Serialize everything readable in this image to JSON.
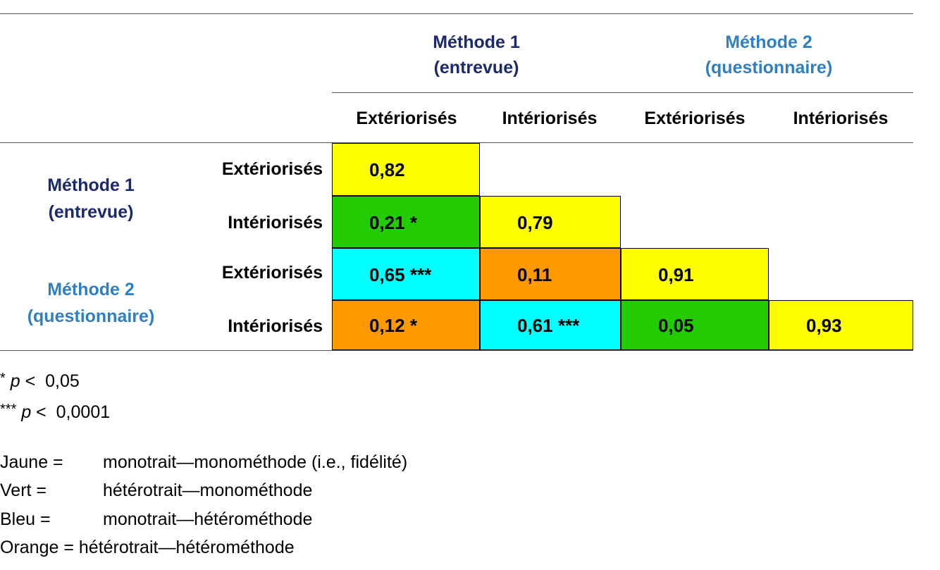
{
  "colors": {
    "header_m1": "#1a2a6c",
    "header_m2": "#2f7fc2",
    "yellow": "#ffff00",
    "green": "#22cc00",
    "cyan": "#00ffff",
    "orange": "#ff9900"
  },
  "header": {
    "method1_line1": "Méthode 1",
    "method1_line2": "(entrevue)",
    "method2_line1": "Méthode 2",
    "method2_line2": "(questionnaire)"
  },
  "columns": [
    "Extériorisés",
    "Intériorisés",
    "Extériorisés",
    "Intériorisés"
  ],
  "row_groups": {
    "method1_line1": "Méthode 1",
    "method1_line2": "(entrevue)",
    "method2_line1": "Méthode 2",
    "method2_line2": "(questionnaire)"
  },
  "rows": [
    "Extériorisés",
    "Intériorisés",
    "Extériorisés",
    "Intériorisés"
  ],
  "chart_data": {
    "type": "table",
    "title": "",
    "row_labels": [
      "Méthode 1 — Extériorisés",
      "Méthode 1 — Intériorisés",
      "Méthode 2 — Extériorisés",
      "Méthode 2 — Intériorisés"
    ],
    "column_labels": [
      "Méthode 1 — Extériorisés",
      "Méthode 1 — Intériorisés",
      "Méthode 2 — Extériorisés",
      "Méthode 2 — Intériorisés"
    ],
    "cells": [
      [
        "0,82",
        "",
        "",
        ""
      ],
      [
        "0,21 *",
        "0,79",
        "",
        ""
      ],
      [
        "0,65 ***",
        "0,11",
        "0,91",
        ""
      ],
      [
        "0,12 *",
        "0,61 ***",
        "0,05",
        "0,93"
      ]
    ],
    "values": [
      [
        0.82,
        null,
        null,
        null
      ],
      [
        0.21,
        0.79,
        null,
        null
      ],
      [
        0.65,
        0.11,
        0.91,
        null
      ],
      [
        0.12,
        0.61,
        0.05,
        0.93
      ]
    ],
    "cell_colors": [
      [
        "yellow",
        null,
        null,
        null
      ],
      [
        "green",
        "yellow",
        null,
        null
      ],
      [
        "cyan",
        "orange",
        "yellow",
        null
      ],
      [
        "orange",
        "cyan",
        "green",
        "yellow"
      ]
    ]
  },
  "footnotes": {
    "sig1_marker": "*",
    "sig1_p": "p",
    "sig1_rest": " <  0,05",
    "sig3_marker": "***",
    "sig3_p": "p",
    "sig3_rest": " <  0,0001"
  },
  "legend": [
    {
      "key": "Jaune =",
      "text": "monotrait—monométhode (i.e., fidélité)"
    },
    {
      "key": "Vert =",
      "text": "hétérotrait—monométhode"
    },
    {
      "key": "Bleu =",
      "text": "monotrait—hétérométhode"
    },
    {
      "key": "Orange =",
      "text": "hétérotrait—hétérométhode"
    }
  ]
}
